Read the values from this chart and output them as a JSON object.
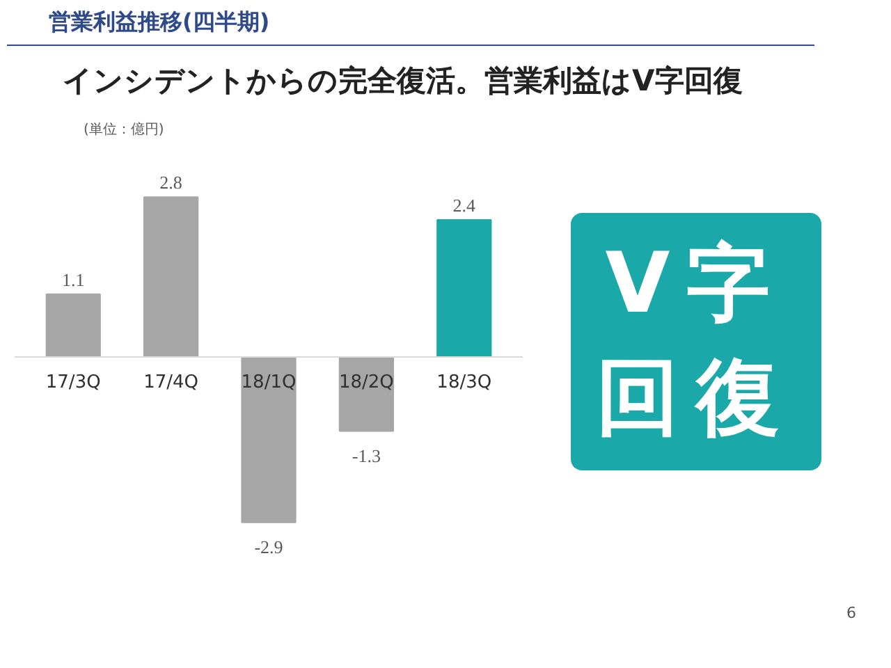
{
  "chart_data": {
    "type": "bar",
    "title": "営業利益推移(四半期)",
    "subtitle": "インシデントからの完全復活。営業利益はV字回復",
    "ylabel": "(単位：億円)",
    "categories": [
      "17/3Q",
      "17/4Q",
      "18/1Q",
      "18/2Q",
      "18/3Q"
    ],
    "values": [
      1.1,
      2.8,
      -2.9,
      -1.3,
      2.4
    ],
    "colors": [
      "#a6a6a6",
      "#a6a6a6",
      "#a6a6a6",
      "#a6a6a6",
      "#1aa8a8"
    ],
    "data_labels": true,
    "grid": false,
    "tick_labels": "x",
    "annotations": [
      "V字回復",
      "6"
    ]
  }
}
